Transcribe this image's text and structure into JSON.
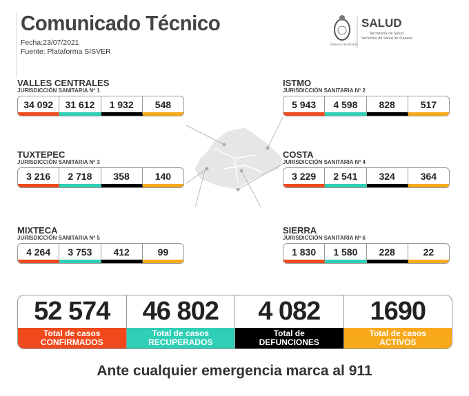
{
  "header": {
    "title": "Comunicado Técnico",
    "fecha": "Fecha:23/07/2021",
    "fuente": "Fuente: Plataforma SISVER"
  },
  "logo": {
    "name": "SALUD",
    "line1": "Secretaría de Salud",
    "line2": "Servicios de Salud de Oaxaca",
    "gov": "Gobierno del Estado"
  },
  "colors": {
    "confirmados": "#f04a1c",
    "recuperados": "#2fcfb6",
    "defunciones": "#000000",
    "activos": "#f8a91b"
  },
  "regions": [
    {
      "name": "VALLES CENTRALES",
      "sub": "JURISDICCIÓN SANITARIA Nº 1",
      "values": [
        "34 092",
        "31 612",
        "1 932",
        "548"
      ]
    },
    {
      "name": "ISTMO",
      "sub": "JURISDICCIÓN SANITARIA Nº 2",
      "values": [
        "5 943",
        "4 598",
        "828",
        "517"
      ]
    },
    {
      "name": "TUXTEPEC",
      "sub": "JURISDICCIÓN SANITARIA Nº 3",
      "values": [
        "3 216",
        "2 718",
        "358",
        "140"
      ]
    },
    {
      "name": "COSTA",
      "sub": "JURISDICCIÓN SANITARIA Nº 4",
      "values": [
        "3 229",
        "2 541",
        "324",
        "364"
      ]
    },
    {
      "name": "MIXTECA",
      "sub": "JURISDICCIÓN SANITARIA Nº 5",
      "values": [
        "4 264",
        "3 753",
        "412",
        "99"
      ]
    },
    {
      "name": "SIERRA",
      "sub": "JURISDICCIÓN SANITARIA Nº 6",
      "values": [
        "1 830",
        "1 580",
        "228",
        "22"
      ]
    }
  ],
  "totals": [
    {
      "value": "52 574",
      "line1": "Total de casos",
      "line2": "CONFIRMADOS"
    },
    {
      "value": "46 802",
      "line1": "Total de casos",
      "line2": "RECUPERADOS"
    },
    {
      "value": "4 082",
      "line1": "Total de",
      "line2": "DEFUNCIONES"
    },
    {
      "value": "1690",
      "line1": "Total de casos",
      "line2": "ACTIVOS"
    }
  ],
  "footer": "Ante cualquier emergencia marca al 911"
}
